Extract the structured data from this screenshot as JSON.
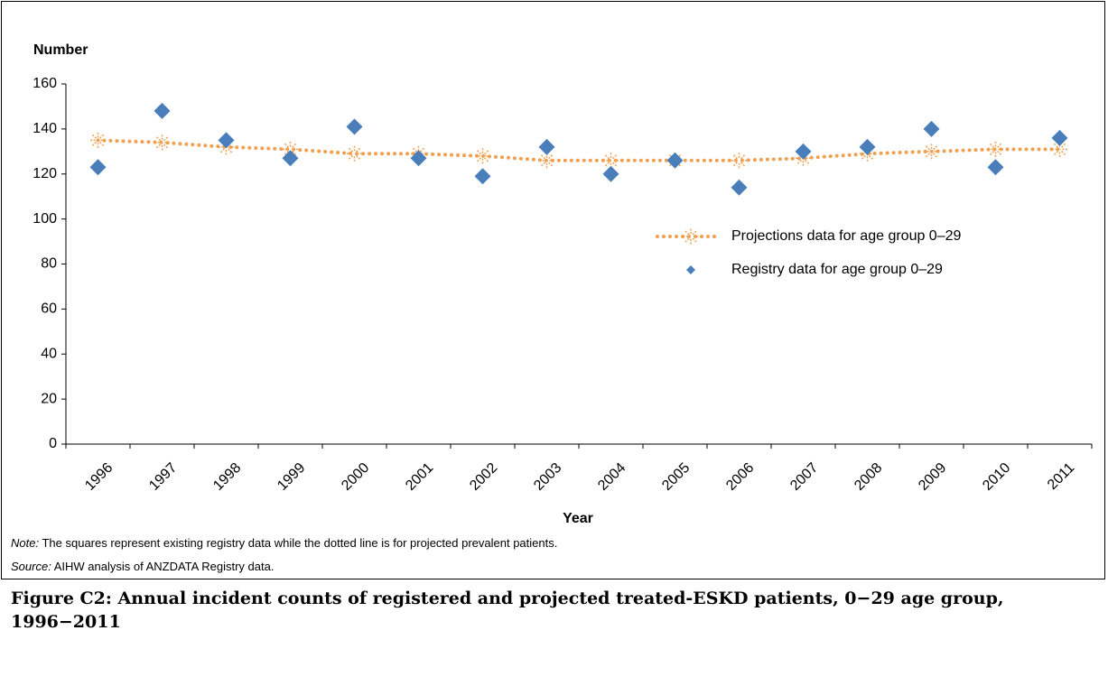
{
  "chart_data": {
    "type": "line",
    "y_label": "Number",
    "x_label": "Year",
    "categories": [
      "1996",
      "1997",
      "1998",
      "1999",
      "2000",
      "2001",
      "2002",
      "2003",
      "2004",
      "2005",
      "2006",
      "2007",
      "2008",
      "2009",
      "2010",
      "2011"
    ],
    "series": [
      {
        "name": "Projections data for age group 0–29",
        "color": "#f0a050",
        "line_style": "dotted",
        "marker": "star",
        "values": [
          135,
          134,
          132,
          131,
          129,
          129,
          128,
          126,
          126,
          126,
          126,
          127,
          129,
          130,
          131,
          131
        ]
      },
      {
        "name": "Registry data for age group 0–29",
        "color": "#4a7ebb",
        "line_style": "none",
        "marker": "diamond",
        "values": [
          123,
          148,
          135,
          127,
          141,
          127,
          119,
          132,
          120,
          126,
          114,
          130,
          132,
          140,
          123,
          136
        ]
      }
    ],
    "ylim": [
      0,
      160
    ],
    "yticks": [
      0,
      20,
      40,
      60,
      80,
      100,
      120,
      140,
      160
    ],
    "grid": false,
    "legend": "center-right"
  },
  "note": {
    "label": "Note:",
    "text": "The squares represent existing registry data while the dotted line is for projected prevalent patients."
  },
  "source": {
    "label": "Source:",
    "text": "AIHW analysis of ANZDATA Registry data."
  },
  "caption": "Figure C2: Annual incident counts of registered and projected treated-ESKD patients, 0−29 age group, 1996−2011"
}
